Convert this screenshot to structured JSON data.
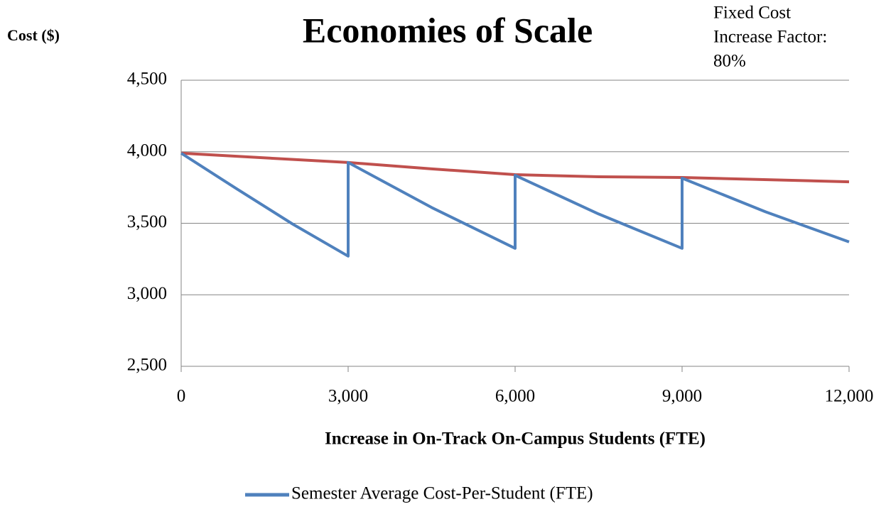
{
  "chart_data": {
    "type": "line",
    "title": "Economies of Scale",
    "y_label": "Cost ($)",
    "x_label": "Increase in On-Track On-Campus Students (FTE)",
    "annotation": [
      "Fixed Cost",
      "Increase Factor:",
      "80%"
    ],
    "xlim": [
      0,
      12000
    ],
    "xticks": [
      0,
      {
        "value": 3000,
        "label": "3,000"
      },
      {
        "value": 6000,
        "label": "6,000"
      },
      {
        "value": 9000,
        "label": "9,000"
      },
      {
        "value": 12000,
        "label": "12,000"
      }
    ],
    "ylim": [
      2500,
      4500
    ],
    "yticks": [
      {
        "value": 2500,
        "label": "2,500"
      },
      {
        "value": 3000,
        "label": "3,000"
      },
      {
        "value": 3500,
        "label": "3,500"
      },
      {
        "value": 4000,
        "label": "4,000"
      },
      {
        "value": 4500,
        "label": "4,500"
      }
    ],
    "grid": true,
    "legend": "bottom",
    "series": [
      {
        "name": "Semester Average Cost-Per-Student (FTE)",
        "color": "#4f81bd",
        "x": [
          0,
          1000,
          2000,
          3000,
          3000,
          4500,
          6000,
          6000,
          7500,
          9000,
          9000,
          10500,
          12000
        ],
        "values": [
          3990,
          3740,
          3495,
          3270,
          3925,
          3610,
          3325,
          3835,
          3565,
          3325,
          3815,
          3580,
          3370
        ]
      },
      {
        "color": "#c0504d",
        "x": [
          0,
          3000,
          4500,
          6000,
          7500,
          9000,
          12000
        ],
        "values": [
          3990,
          3925,
          3880,
          3840,
          3825,
          3820,
          3790
        ]
      }
    ]
  }
}
